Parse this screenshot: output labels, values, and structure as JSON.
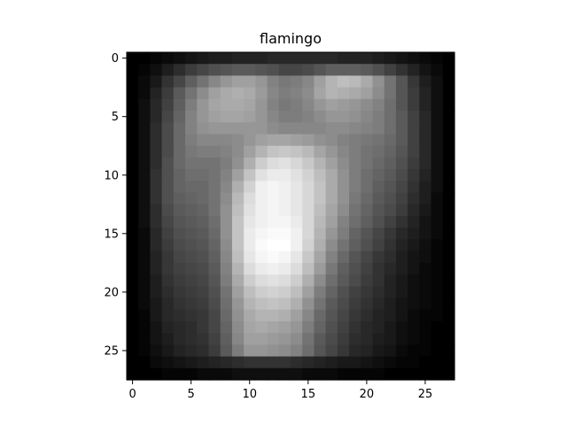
{
  "chart_data": {
    "type": "heatmap",
    "title": "flamingo",
    "xlabel": "",
    "ylabel": "",
    "colormap": "gray",
    "value_range": [
      0,
      255
    ],
    "x_range": [
      -0.5,
      27.5
    ],
    "y_range": [
      -0.5,
      27.5
    ],
    "y_inverted": true,
    "grid": false,
    "x_ticks": [
      0,
      5,
      10,
      15,
      20,
      25
    ],
    "y_ticks": [
      0,
      5,
      10,
      15,
      20,
      25
    ],
    "x_tick_labels": [
      "0",
      "5",
      "10",
      "15",
      "20",
      "25"
    ],
    "y_tick_labels": [
      "0",
      "5",
      "10",
      "15",
      "20",
      "25"
    ],
    "values": [
      [
        0,
        0,
        5,
        10,
        15,
        20,
        25,
        30,
        30,
        35,
        35,
        35,
        40,
        40,
        40,
        40,
        40,
        40,
        35,
        35,
        35,
        30,
        25,
        20,
        15,
        10,
        5,
        0
      ],
      [
        0,
        5,
        15,
        30,
        45,
        60,
        70,
        80,
        85,
        90,
        90,
        85,
        80,
        70,
        70,
        75,
        85,
        95,
        95,
        95,
        90,
        80,
        65,
        50,
        35,
        20,
        10,
        0
      ],
      [
        0,
        10,
        25,
        50,
        70,
        95,
        115,
        135,
        150,
        160,
        160,
        150,
        130,
        120,
        125,
        135,
        160,
        180,
        190,
        185,
        170,
        145,
        115,
        85,
        55,
        30,
        15,
        0
      ],
      [
        0,
        10,
        35,
        60,
        90,
        115,
        140,
        160,
        170,
        175,
        170,
        155,
        135,
        125,
        130,
        140,
        165,
        180,
        175,
        170,
        160,
        140,
        115,
        85,
        60,
        35,
        15,
        0
      ],
      [
        0,
        15,
        40,
        65,
        95,
        125,
        150,
        165,
        170,
        170,
        165,
        150,
        130,
        120,
        125,
        135,
        150,
        160,
        155,
        150,
        140,
        130,
        110,
        85,
        60,
        35,
        15,
        0
      ],
      [
        0,
        15,
        40,
        70,
        100,
        130,
        150,
        160,
        165,
        165,
        160,
        150,
        135,
        125,
        125,
        130,
        140,
        150,
        150,
        145,
        135,
        125,
        110,
        90,
        65,
        40,
        15,
        0
      ],
      [
        0,
        15,
        45,
        75,
        105,
        130,
        145,
        150,
        150,
        150,
        150,
        150,
        140,
        135,
        135,
        135,
        135,
        140,
        140,
        135,
        130,
        125,
        110,
        90,
        65,
        40,
        15,
        0
      ],
      [
        0,
        15,
        45,
        75,
        105,
        125,
        135,
        135,
        135,
        140,
        150,
        160,
        165,
        165,
        160,
        155,
        145,
        140,
        130,
        125,
        120,
        115,
        105,
        90,
        65,
        40,
        15,
        0
      ],
      [
        0,
        15,
        45,
        75,
        105,
        120,
        125,
        125,
        130,
        140,
        160,
        180,
        195,
        200,
        195,
        185,
        165,
        150,
        135,
        125,
        115,
        110,
        100,
        85,
        65,
        40,
        15,
        0
      ],
      [
        0,
        15,
        45,
        80,
        105,
        115,
        115,
        115,
        125,
        145,
        175,
        205,
        220,
        225,
        215,
        200,
        180,
        160,
        140,
        125,
        115,
        105,
        95,
        80,
        60,
        40,
        15,
        0
      ],
      [
        0,
        15,
        50,
        80,
        100,
        110,
        110,
        115,
        130,
        160,
        195,
        225,
        235,
        235,
        225,
        210,
        190,
        170,
        145,
        125,
        110,
        100,
        90,
        75,
        55,
        35,
        15,
        0
      ],
      [
        0,
        15,
        50,
        80,
        100,
        105,
        105,
        115,
        135,
        175,
        210,
        240,
        245,
        240,
        230,
        215,
        195,
        170,
        145,
        125,
        110,
        95,
        85,
        70,
        50,
        30,
        15,
        0
      ],
      [
        0,
        15,
        50,
        80,
        95,
        100,
        105,
        115,
        140,
        185,
        220,
        240,
        245,
        240,
        230,
        215,
        195,
        170,
        145,
        120,
        105,
        90,
        80,
        65,
        45,
        30,
        10,
        0
      ],
      [
        0,
        15,
        45,
        75,
        90,
        95,
        100,
        115,
        145,
        190,
        225,
        240,
        245,
        240,
        230,
        215,
        190,
        165,
        140,
        115,
        100,
        85,
        75,
        60,
        40,
        25,
        10,
        0
      ],
      [
        0,
        15,
        45,
        70,
        85,
        90,
        95,
        110,
        145,
        195,
        230,
        240,
        245,
        245,
        235,
        215,
        185,
        160,
        130,
        110,
        95,
        80,
        65,
        50,
        35,
        20,
        10,
        0
      ],
      [
        0,
        10,
        40,
        65,
        80,
        85,
        90,
        105,
        145,
        195,
        235,
        245,
        250,
        250,
        240,
        215,
        180,
        150,
        125,
        100,
        85,
        70,
        55,
        40,
        30,
        20,
        10,
        0
      ],
      [
        0,
        10,
        40,
        60,
        75,
        80,
        85,
        100,
        140,
        195,
        235,
        250,
        255,
        255,
        240,
        210,
        175,
        140,
        115,
        95,
        80,
        65,
        50,
        35,
        25,
        15,
        5,
        0
      ],
      [
        0,
        10,
        35,
        55,
        70,
        75,
        80,
        95,
        135,
        190,
        230,
        245,
        250,
        245,
        230,
        200,
        165,
        130,
        105,
        85,
        70,
        55,
        45,
        30,
        20,
        15,
        5,
        0
      ],
      [
        0,
        10,
        35,
        55,
        65,
        70,
        75,
        90,
        130,
        180,
        220,
        235,
        240,
        235,
        220,
        190,
        155,
        120,
        95,
        80,
        65,
        50,
        40,
        30,
        20,
        10,
        5,
        0
      ],
      [
        0,
        10,
        30,
        50,
        60,
        65,
        70,
        85,
        125,
        170,
        205,
        220,
        225,
        220,
        205,
        175,
        140,
        110,
        90,
        75,
        60,
        50,
        35,
        25,
        15,
        10,
        5,
        0
      ],
      [
        0,
        10,
        30,
        45,
        55,
        60,
        65,
        80,
        115,
        160,
        190,
        205,
        210,
        205,
        190,
        160,
        125,
        100,
        80,
        65,
        55,
        45,
        35,
        25,
        15,
        10,
        5,
        0
      ],
      [
        0,
        10,
        25,
        40,
        50,
        55,
        60,
        75,
        110,
        150,
        180,
        190,
        195,
        190,
        175,
        145,
        115,
        90,
        75,
        60,
        50,
        40,
        30,
        20,
        15,
        10,
        5,
        0
      ],
      [
        0,
        5,
        25,
        40,
        45,
        50,
        55,
        70,
        105,
        145,
        170,
        180,
        180,
        175,
        160,
        135,
        105,
        85,
        70,
        55,
        45,
        35,
        30,
        20,
        10,
        5,
        5,
        0
      ],
      [
        0,
        5,
        20,
        35,
        40,
        45,
        55,
        70,
        100,
        140,
        165,
        170,
        165,
        160,
        150,
        125,
        100,
        80,
        65,
        50,
        40,
        35,
        25,
        15,
        10,
        5,
        0,
        0
      ],
      [
        0,
        5,
        20,
        30,
        40,
        45,
        50,
        65,
        95,
        135,
        160,
        160,
        155,
        150,
        140,
        115,
        90,
        75,
        60,
        45,
        40,
        30,
        25,
        15,
        10,
        5,
        0,
        0
      ],
      [
        0,
        5,
        15,
        25,
        35,
        40,
        45,
        60,
        90,
        125,
        150,
        150,
        145,
        140,
        130,
        110,
        85,
        70,
        55,
        40,
        35,
        25,
        20,
        10,
        5,
        5,
        0,
        0
      ],
      [
        0,
        0,
        10,
        15,
        20,
        25,
        30,
        35,
        40,
        45,
        50,
        50,
        50,
        50,
        45,
        40,
        35,
        30,
        25,
        25,
        20,
        15,
        10,
        5,
        5,
        0,
        0,
        0
      ],
      [
        0,
        0,
        0,
        5,
        5,
        5,
        10,
        10,
        10,
        15,
        15,
        15,
        15,
        15,
        15,
        10,
        10,
        10,
        5,
        5,
        5,
        5,
        0,
        0,
        0,
        0,
        0,
        0
      ]
    ]
  }
}
